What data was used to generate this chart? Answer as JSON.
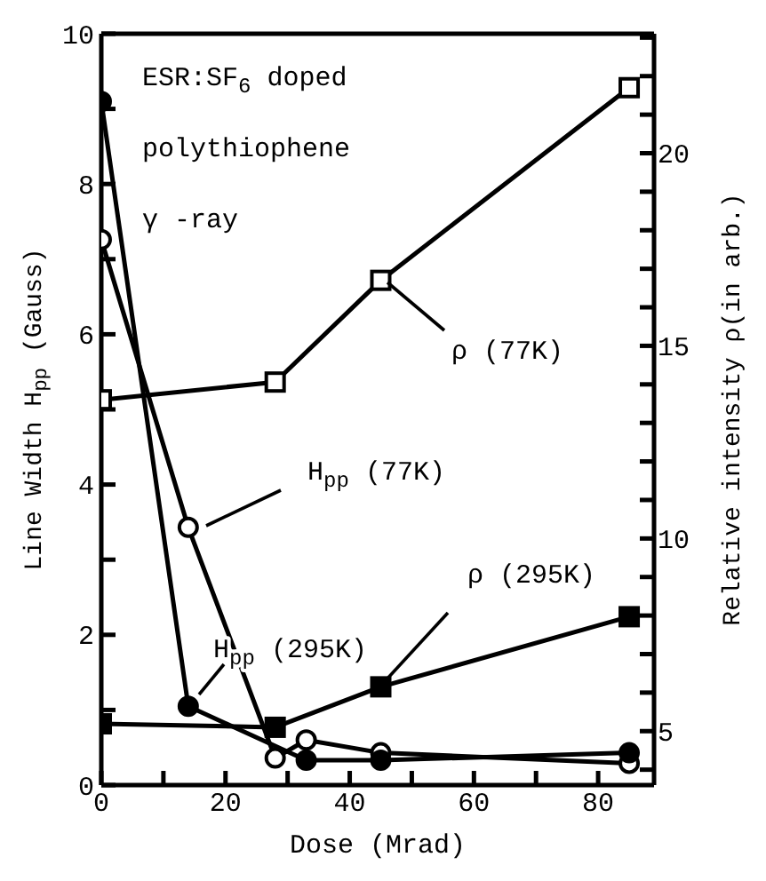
{
  "chart_data": {
    "type": "line",
    "xlabel": "Dose (Mrad)",
    "ylabel": "Line Width  H$_{pp}$ (Gauss)",
    "y2label": "Relative intensity ρ(in arb.)",
    "annotations": [
      "ESR:SF$_{6}$ doped",
      "polythiophene",
      "γ -ray"
    ],
    "xlim": [
      0,
      89
    ],
    "xticks": [
      0,
      {
        "value": 10,
        "label": null
      },
      20,
      {
        "value": 30,
        "label": null
      },
      40,
      {
        "value": 50,
        "label": null
      },
      60,
      {
        "value": 70,
        "label": null
      },
      80
    ],
    "ylim": [
      0,
      10
    ],
    "yticks": [
      0,
      {
        "value": 1,
        "label": null
      },
      2,
      {
        "value": 3,
        "label": null
      },
      4,
      {
        "value": 5,
        "label": null
      },
      6,
      {
        "value": 7,
        "label": null
      },
      8,
      {
        "value": 9,
        "label": null
      },
      10
    ],
    "y2lim": [
      3.6,
      23.1
    ],
    "y2ticks": [
      {
        "value": 4,
        "label": null
      },
      5,
      {
        "value": 6,
        "label": null
      },
      {
        "value": 7,
        "label": null
      },
      {
        "value": 8,
        "label": null
      },
      {
        "value": 9,
        "label": null
      },
      10,
      {
        "value": 11,
        "label": null
      },
      {
        "value": 12,
        "label": null
      },
      {
        "value": 13,
        "label": null
      },
      {
        "value": 14,
        "label": null
      },
      15,
      {
        "value": 16,
        "label": null
      },
      {
        "value": 17,
        "label": null
      },
      {
        "value": 18,
        "label": null
      },
      {
        "value": 19,
        "label": null
      },
      20,
      {
        "value": 21,
        "label": null
      },
      {
        "value": 22,
        "label": null
      },
      {
        "value": 23,
        "label": null
      }
    ],
    "series": [
      {
        "name": "H$_{pp}$(295K)",
        "color": "#000000",
        "marker": "circle",
        "x": [
          0,
          14,
          33,
          45,
          85
        ],
        "values": [
          9.1,
          1.05,
          0.33,
          0.33,
          0.43
        ]
      },
      {
        "name": "H$_{pp}$(77K)",
        "color": "#000000",
        "marker": "circle",
        "x": [
          0,
          14,
          28,
          33,
          45,
          85
        ],
        "values": [
          7.26,
          3.43,
          0.36,
          0.6,
          0.43,
          0.29
        ]
      },
      {
        "name": "ρ (77K)",
        "color": "#000000",
        "marker": "square",
        "axis": "y2",
        "x": [
          0,
          28,
          45,
          85
        ],
        "values": [
          13.6,
          14.06,
          16.7,
          21.7
        ]
      },
      {
        "name": "ρ (295K)",
        "color": "#000000",
        "marker": "square",
        "axis": "y2",
        "x": [
          0,
          28,
          45,
          85
        ],
        "values": [
          5.19,
          5.1,
          6.15,
          7.97
        ]
      }
    ]
  }
}
